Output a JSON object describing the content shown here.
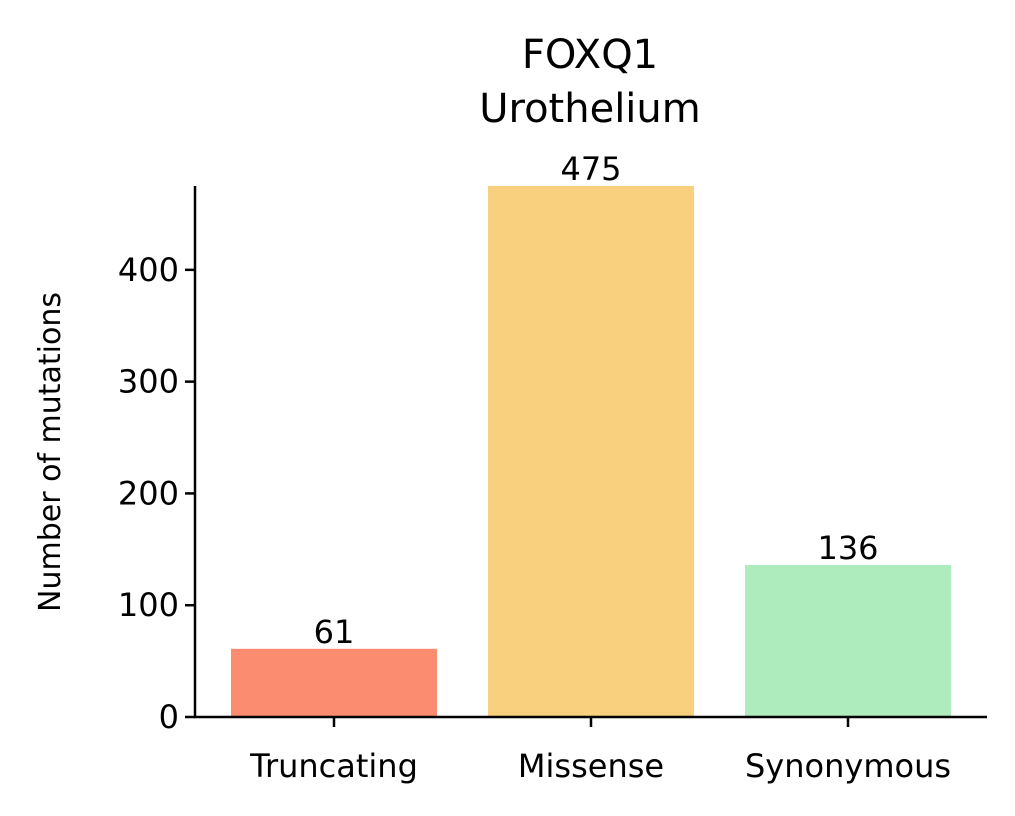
{
  "chart_data": {
    "type": "bar",
    "title": "FOXQ1",
    "subtitle": "Urothelium",
    "ylabel": "Number of mutations",
    "xlabel": "",
    "categories": [
      "Truncating",
      "Missense",
      "Synonymous"
    ],
    "values": [
      61,
      475,
      136
    ],
    "colors": [
      "#fb8c6f",
      "#f9d07e",
      "#aeebbd"
    ],
    "ylim": [
      0,
      475
    ],
    "yticks": [
      0,
      100,
      200,
      300,
      400
    ],
    "grid": false,
    "legend": "none"
  }
}
